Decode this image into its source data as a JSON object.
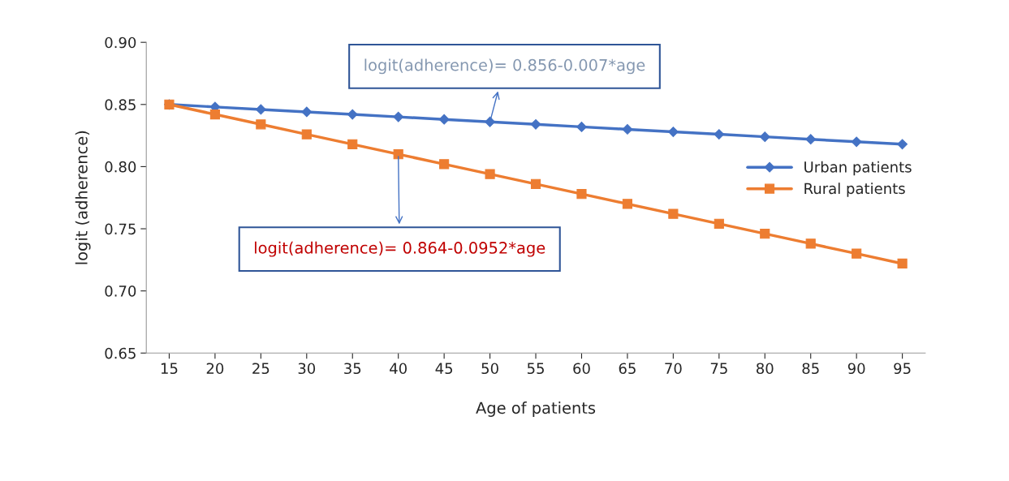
{
  "chart_data": {
    "type": "line",
    "xlabel": "Age of patients",
    "ylabel": "logit (adherence)",
    "categories": [
      "15",
      "20",
      "25",
      "30",
      "35",
      "40",
      "45",
      "50",
      "55",
      "60",
      "65",
      "70",
      "75",
      "80",
      "85",
      "90",
      "95"
    ],
    "series": [
      {
        "name": "Urban patients",
        "color": "#4472c4",
        "marker": "diamond",
        "values": [
          0.85,
          0.848,
          0.846,
          0.844,
          0.842,
          0.84,
          0.838,
          0.836,
          0.834,
          0.832,
          0.83,
          0.828,
          0.826,
          0.824,
          0.822,
          0.82,
          0.818
        ]
      },
      {
        "name": "Rural patients",
        "color": "#ed7d31",
        "marker": "square",
        "values": [
          0.85,
          0.842,
          0.834,
          0.826,
          0.818,
          0.81,
          0.802,
          0.794,
          0.786,
          0.778,
          0.77,
          0.762,
          0.754,
          0.746,
          0.738,
          0.73,
          0.722
        ]
      }
    ],
    "annotations": [
      {
        "text": "logit(adherence)= 0.856-0.007*age",
        "x": "50",
        "y": 0.836
      },
      {
        "text": "logit(adherence)= 0.864-0.0952*age",
        "x": "40",
        "y": 0.81
      }
    ],
    "ylim": [
      0.65,
      0.9
    ],
    "yticks": [
      {
        "value": 0.65,
        "label": "0.65"
      },
      {
        "value": 0.7,
        "label": "0.70"
      },
      {
        "value": 0.75,
        "label": "0.75"
      },
      {
        "value": 0.8,
        "label": "0.80"
      },
      {
        "value": 0.85,
        "label": "0.85"
      },
      {
        "value": 0.9,
        "label": "0.90"
      }
    ],
    "grid": false,
    "legend": "right"
  }
}
